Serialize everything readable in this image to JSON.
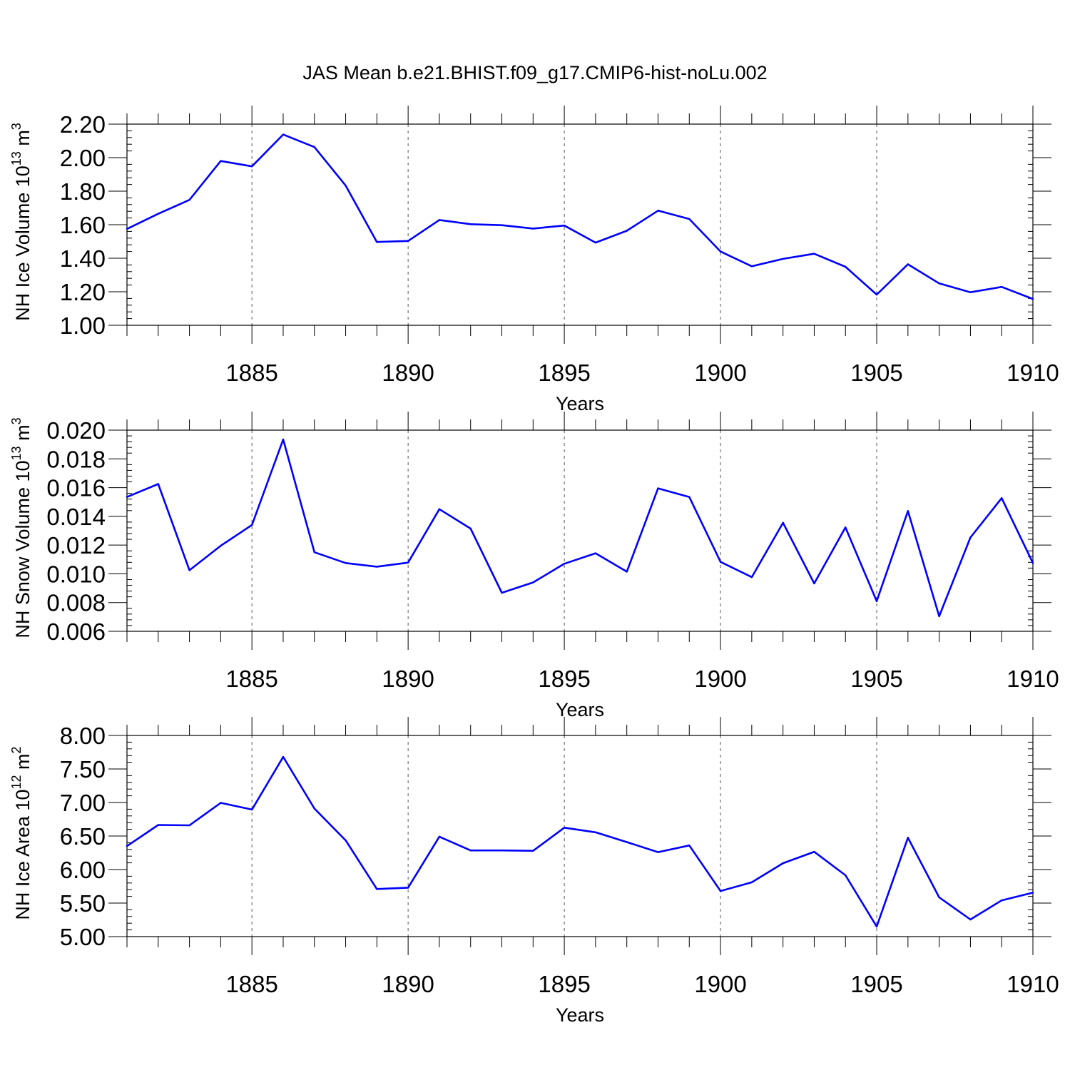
{
  "title": "JAS Mean b.e21.BHIST.f09_g17.CMIP6-hist-noLu.002",
  "line_color": "#0000ff",
  "chart_data": [
    {
      "type": "line",
      "xlabel": "Years",
      "ylabel": {
        "prefix": "NH Ice Volume 10",
        "exponent": "13",
        "unit": " m",
        "unit_exponent": "3"
      },
      "xlim": [
        1881,
        1910
      ],
      "ylim": [
        1.0,
        2.2
      ],
      "x_major_ticks": [
        1885,
        1890,
        1895,
        1900,
        1905,
        1910
      ],
      "y_major_ticks": [
        1.0,
        1.2,
        1.4,
        1.6,
        1.8,
        2.0,
        2.2
      ],
      "y_tick_labels": [
        "1.00",
        "1.20",
        "1.40",
        "1.60",
        "1.80",
        "2.00",
        "2.20"
      ],
      "x_tick_labels": [
        "1885",
        "1890",
        "1895",
        "1900",
        "1905",
        "1910"
      ],
      "x": [
        1881,
        1882,
        1883,
        1884,
        1885,
        1886,
        1887,
        1888,
        1889,
        1890,
        1891,
        1892,
        1893,
        1894,
        1895,
        1896,
        1897,
        1898,
        1899,
        1900,
        1901,
        1902,
        1903,
        1904,
        1905,
        1906,
        1907,
        1908,
        1909,
        1910
      ],
      "values": [
        1.575,
        1.665,
        1.748,
        1.98,
        1.948,
        2.138,
        2.063,
        1.833,
        1.497,
        1.503,
        1.628,
        1.603,
        1.597,
        1.577,
        1.595,
        1.493,
        1.564,
        1.684,
        1.634,
        1.44,
        1.352,
        1.396,
        1.427,
        1.349,
        1.183,
        1.364,
        1.25,
        1.197,
        1.229,
        1.157
      ]
    },
    {
      "type": "line",
      "xlabel": "Years",
      "ylabel": {
        "prefix": "NH Snow Volume 10",
        "exponent": "13",
        "unit": " m",
        "unit_exponent": "3"
      },
      "xlim": [
        1881,
        1910
      ],
      "ylim": [
        0.006,
        0.02
      ],
      "x_major_ticks": [
        1885,
        1890,
        1895,
        1900,
        1905,
        1910
      ],
      "y_major_ticks": [
        0.006,
        0.008,
        0.01,
        0.012,
        0.014,
        0.016,
        0.018,
        0.02
      ],
      "y_tick_labels": [
        "0.006",
        "0.008",
        "0.010",
        "0.012",
        "0.014",
        "0.016",
        "0.018",
        "0.020"
      ],
      "x_tick_labels": [
        "1885",
        "1890",
        "1895",
        "1900",
        "1905",
        "1910"
      ],
      "x": [
        1881,
        1882,
        1883,
        1884,
        1885,
        1886,
        1887,
        1888,
        1889,
        1890,
        1891,
        1892,
        1893,
        1894,
        1895,
        1896,
        1897,
        1898,
        1899,
        1900,
        1901,
        1902,
        1903,
        1904,
        1905,
        1906,
        1907,
        1908,
        1909,
        1910
      ],
      "values": [
        0.01535,
        0.01625,
        0.01025,
        0.01195,
        0.0134,
        0.01935,
        0.0115,
        0.01075,
        0.0105,
        0.01078,
        0.0145,
        0.01315,
        0.00868,
        0.0094,
        0.0107,
        0.01143,
        0.01015,
        0.01595,
        0.01535,
        0.01083,
        0.00977,
        0.01355,
        0.00933,
        0.01323,
        0.0081,
        0.01437,
        0.00705,
        0.01253,
        0.01527,
        0.01075
      ]
    },
    {
      "type": "line",
      "xlabel": "Years",
      "ylabel": {
        "prefix": "NH Ice Area 10",
        "exponent": "12",
        "unit": " m",
        "unit_exponent": "2"
      },
      "xlim": [
        1881,
        1910
      ],
      "ylim": [
        5.0,
        8.0
      ],
      "x_major_ticks": [
        1885,
        1890,
        1895,
        1900,
        1905,
        1910
      ],
      "y_major_ticks": [
        5.0,
        5.5,
        6.0,
        6.5,
        7.0,
        7.5,
        8.0
      ],
      "y_tick_labels": [
        "5.00",
        "5.50",
        "6.00",
        "6.50",
        "7.00",
        "7.50",
        "8.00"
      ],
      "x_tick_labels": [
        "1885",
        "1890",
        "1895",
        "1900",
        "1905",
        "1910"
      ],
      "x": [
        1881,
        1882,
        1883,
        1884,
        1885,
        1886,
        1887,
        1888,
        1889,
        1890,
        1891,
        1892,
        1893,
        1894,
        1895,
        1896,
        1897,
        1898,
        1899,
        1900,
        1901,
        1902,
        1903,
        1904,
        1905,
        1906,
        1907,
        1908,
        1909,
        1910
      ],
      "values": [
        6.35,
        6.665,
        6.66,
        6.995,
        6.895,
        7.68,
        6.91,
        6.435,
        5.71,
        5.73,
        6.49,
        6.285,
        6.285,
        6.28,
        6.625,
        6.555,
        6.41,
        6.26,
        6.36,
        5.68,
        5.81,
        6.095,
        6.265,
        5.915,
        5.15,
        6.475,
        5.585,
        5.255,
        5.54,
        5.655
      ]
    }
  ]
}
